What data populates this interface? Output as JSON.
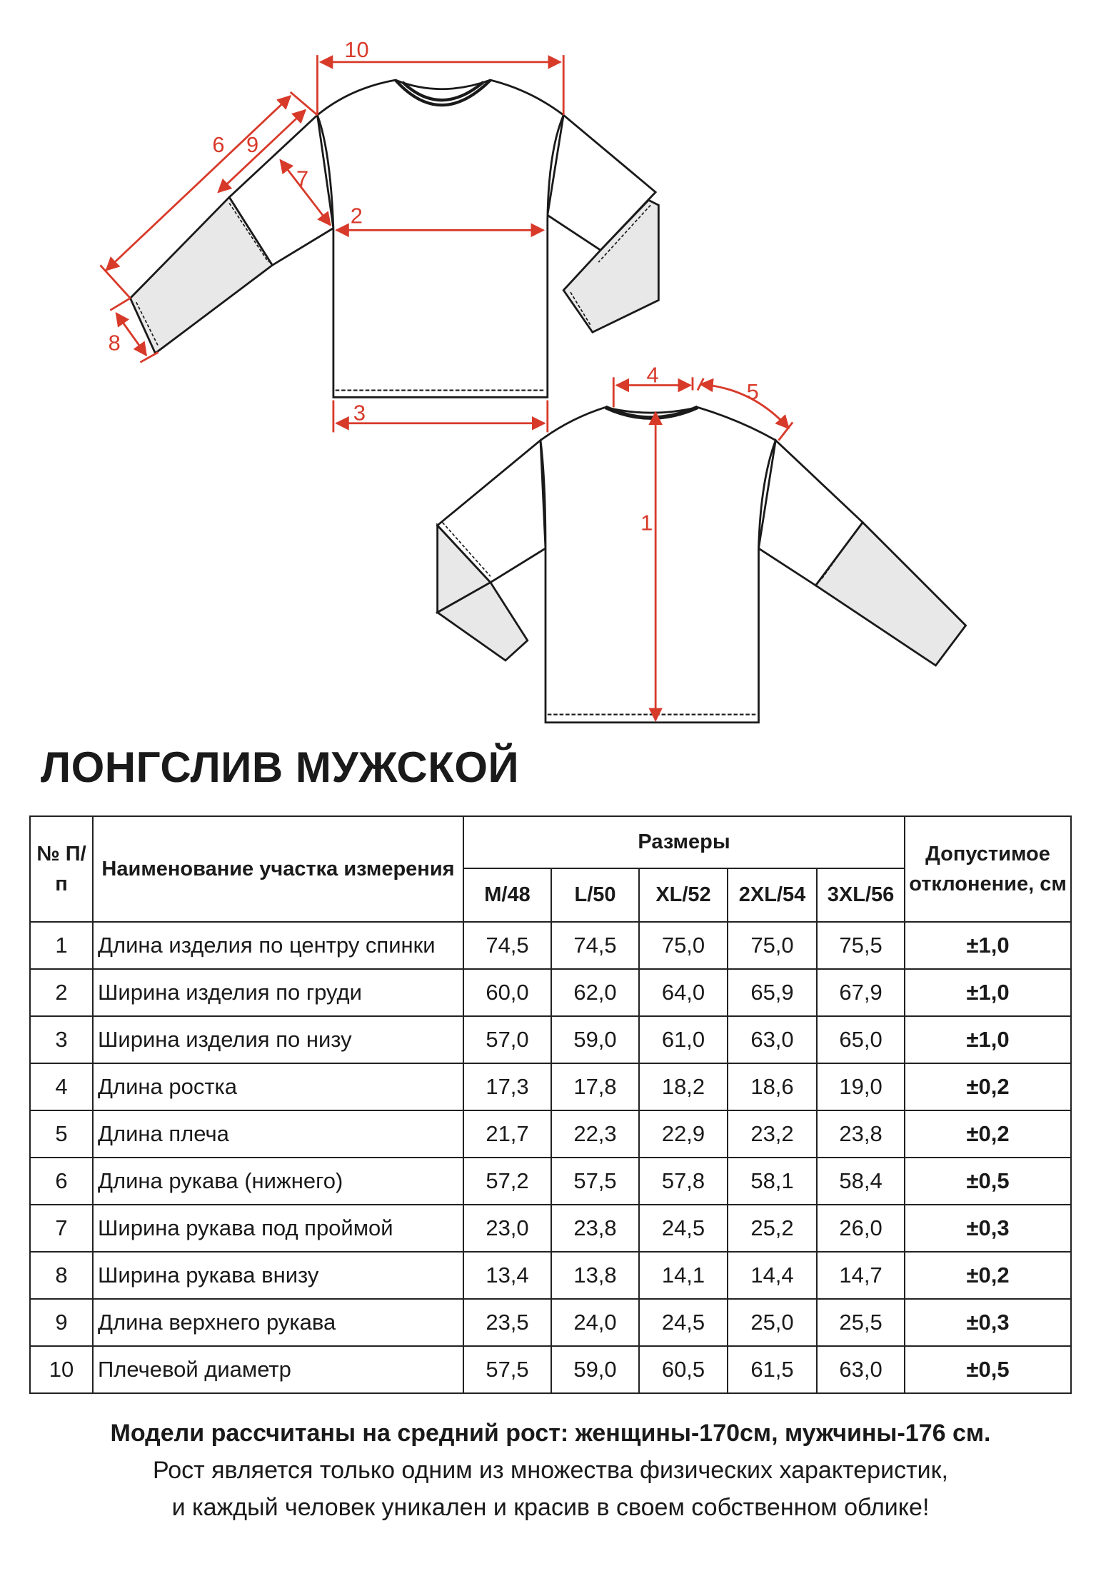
{
  "diagram": {
    "labels": [
      "1",
      "2",
      "3",
      "4",
      "5",
      "6",
      "7",
      "8",
      "9",
      "10"
    ],
    "colors": {
      "dimension_lines": "#d83a2a",
      "outline": "#1a1a1a",
      "lower_sleeve_fill": "#e8e8e8"
    }
  },
  "title": "ЛОНГСЛИВ МУЖСКОЙ",
  "table": {
    "headers": {
      "number": "№ П/п",
      "name": "Наименование участка измерения",
      "sizes_group": "Размеры",
      "sizes": [
        "M/48",
        "L/50",
        "XL/52",
        "2XL/54",
        "3XL/56"
      ],
      "tolerance": "Допустимое отклонение, см"
    },
    "rows": [
      {
        "n": "1",
        "name": "Длина изделия по центру спинки",
        "values": [
          "74,5",
          "74,5",
          "75,0",
          "75,0",
          "75,5"
        ],
        "tol": "±1,0"
      },
      {
        "n": "2",
        "name": "Ширина изделия по груди",
        "values": [
          "60,0",
          "62,0",
          "64,0",
          "65,9",
          "67,9"
        ],
        "tol": "±1,0"
      },
      {
        "n": "3",
        "name": "Ширина изделия по низу",
        "values": [
          "57,0",
          "59,0",
          "61,0",
          "63,0",
          "65,0"
        ],
        "tol": "±1,0"
      },
      {
        "n": "4",
        "name": "Длина ростка",
        "values": [
          "17,3",
          "17,8",
          "18,2",
          "18,6",
          "19,0"
        ],
        "tol": "±0,2"
      },
      {
        "n": "5",
        "name": "Длина плеча",
        "values": [
          "21,7",
          "22,3",
          "22,9",
          "23,2",
          "23,8"
        ],
        "tol": "±0,2"
      },
      {
        "n": "6",
        "name": "Длина рукава (нижнего)",
        "values": [
          "57,2",
          "57,5",
          "57,8",
          "58,1",
          "58,4"
        ],
        "tol": "±0,5"
      },
      {
        "n": "7",
        "name": "Ширина рукава под проймой",
        "values": [
          "23,0",
          "23,8",
          "24,5",
          "25,2",
          "26,0"
        ],
        "tol": "±0,3"
      },
      {
        "n": "8",
        "name": "Ширина рукава внизу",
        "values": [
          "13,4",
          "13,8",
          "14,1",
          "14,4",
          "14,7"
        ],
        "tol": "±0,2"
      },
      {
        "n": "9",
        "name": "Длина верхнего рукава",
        "values": [
          "23,5",
          "24,0",
          "24,5",
          "25,0",
          "25,5"
        ],
        "tol": "±0,3"
      },
      {
        "n": "10",
        "name": "Плечевой диаметр",
        "values": [
          "57,5",
          "59,0",
          "60,5",
          "61,5",
          "63,0"
        ],
        "tol": "±0,5"
      }
    ]
  },
  "footer": {
    "line1": "Модели рассчитаны на средний рост: женщины-170см, мужчины-176 см.",
    "line2": "Рост является только одним из множества физических характеристик,",
    "line3": "и каждый человек уникален и красив в своем собственном облике!"
  }
}
